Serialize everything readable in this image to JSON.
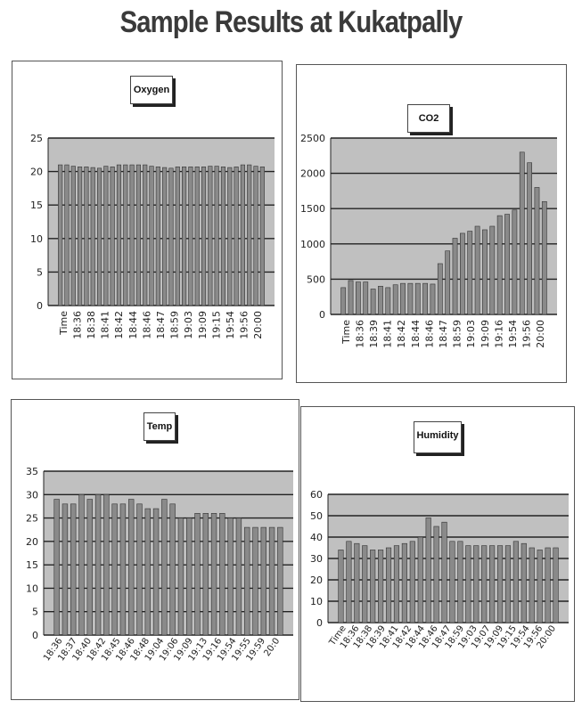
{
  "page": {
    "title": "Sample Results at Kukatpally"
  },
  "colors": {
    "plot_bg": "#c0c0c0",
    "bar": "#8a8a8a",
    "bar_edge": "#333333",
    "grid": "#222222"
  },
  "chart_data": [
    {
      "id": "oxygen",
      "type": "bar",
      "title": "Oxygen",
      "ylim": [
        0,
        25
      ],
      "yticks": [
        0,
        5,
        10,
        15,
        20,
        25
      ],
      "grid": true,
      "legend": "none",
      "x_ticklabels": [
        "Time",
        "18:36",
        "18:38",
        "18:41",
        "18:42",
        "18:44",
        "18:46",
        "18:47",
        "18:59",
        "19:03",
        "19:09",
        "19:15",
        "19:54",
        "19:56",
        "20:00"
      ],
      "values": [
        21,
        21,
        20.8,
        20.7,
        20.7,
        20.6,
        20.5,
        20.8,
        20.7,
        21,
        21,
        21,
        21,
        21,
        20.8,
        20.7,
        20.6,
        20.5,
        20.7,
        20.7,
        20.7,
        20.7,
        20.7,
        20.8,
        20.8,
        20.7,
        20.6,
        20.7,
        21,
        21,
        20.8,
        20.7
      ]
    },
    {
      "id": "co2",
      "type": "bar",
      "title": "CO2",
      "ylim": [
        0,
        2500
      ],
      "yticks": [
        0,
        500,
        1000,
        1500,
        2000,
        2500
      ],
      "grid": true,
      "legend": "none",
      "x_ticklabels": [
        "Time",
        "18:36",
        "18:39",
        "18:41",
        "18:42",
        "18:44",
        "18:46",
        "18:47",
        "18:59",
        "19:03",
        "19:09",
        "19:16",
        "19:54",
        "19:56",
        "20:00"
      ],
      "values": [
        380,
        480,
        460,
        460,
        360,
        400,
        380,
        420,
        440,
        440,
        440,
        440,
        430,
        720,
        900,
        1080,
        1150,
        1180,
        1250,
        1200,
        1250,
        1400,
        1420,
        1480,
        2300,
        2150,
        1800,
        1600
      ]
    },
    {
      "id": "temp",
      "type": "bar",
      "title": "Temp",
      "ylim": [
        0,
        35
      ],
      "yticks": [
        0,
        5,
        10,
        15,
        20,
        25,
        30,
        35
      ],
      "grid": true,
      "legend": "none",
      "x_ticklabels": [
        "18:36",
        "18:37",
        "18:40",
        "18:42",
        "18:45",
        "18:46",
        "18:48",
        "19:04",
        "19:06",
        "19:09",
        "19:13",
        "19:16",
        "19:54",
        "19:55",
        "19:59",
        "20:0"
      ],
      "values": [
        29,
        28,
        28,
        30,
        29,
        30,
        30,
        28,
        28,
        29,
        28,
        27,
        27,
        29,
        28,
        25,
        25,
        26,
        26,
        26,
        26,
        25,
        25,
        23,
        23,
        23,
        23,
        23
      ]
    },
    {
      "id": "humidity",
      "type": "bar",
      "title": "Humidity",
      "ylim": [
        0,
        60
      ],
      "yticks": [
        0,
        10,
        20,
        30,
        40,
        50,
        60
      ],
      "grid": true,
      "legend": "none",
      "x_ticklabels": [
        "Time",
        "18:36",
        "18:38",
        "18:39",
        "18:41",
        "18:42",
        "18:44",
        "18:46",
        "18:47",
        "18:59",
        "19:03",
        "19:07",
        "19:09",
        "19:15",
        "19:54",
        "19:56",
        "20:00"
      ],
      "values": [
        34,
        38,
        37,
        36,
        34,
        34,
        35,
        36,
        37,
        38,
        40,
        49,
        45,
        47,
        38,
        38,
        36,
        36,
        36,
        36,
        36,
        36,
        38,
        37,
        35,
        34,
        35,
        35
      ]
    }
  ]
}
